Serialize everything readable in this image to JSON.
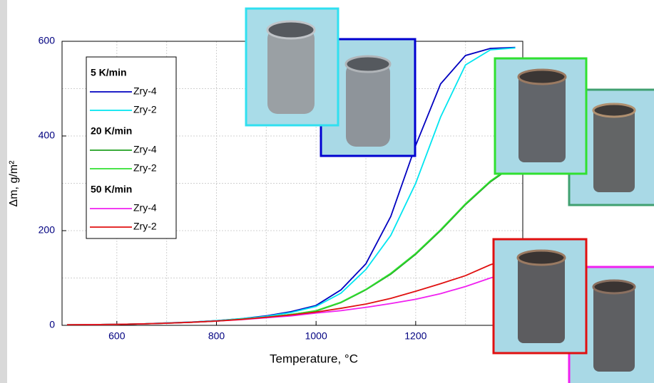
{
  "chart_data": {
    "type": "line",
    "x_label": "Temperature, °C",
    "y_label": "Δm, g/m²",
    "x": [
      500,
      550,
      600,
      650,
      700,
      750,
      800,
      850,
      900,
      950,
      1000,
      1050,
      1100,
      1150,
      1200,
      1250,
      1300,
      1350,
      1400
    ],
    "xlim": [
      490,
      1415
    ],
    "ylim": [
      0,
      600
    ],
    "xticks": [
      600,
      800,
      1000,
      1200
    ],
    "yticks": [
      0,
      200,
      400,
      600
    ],
    "xminorticks": [
      700,
      900,
      1100,
      1300
    ],
    "yminorticks": [
      100,
      300,
      500
    ],
    "grid": true,
    "groups": [
      {
        "title": "5 K/min",
        "series": [
          {
            "name": "Zry-4",
            "color": "#0000c0",
            "values": [
              1,
              1.5,
              2,
              3,
              5,
              7,
              10,
              14,
              20,
              29,
              42,
              75,
              130,
              230,
              380,
              510,
              570,
              585,
              587
            ]
          },
          {
            "name": "Zry-2",
            "color": "#00e5f0",
            "values": [
              1,
              1.5,
              2,
              3,
              5,
              7,
              10,
              14,
              19,
              27,
              40,
              68,
              118,
              190,
              300,
              440,
              550,
              582,
              586
            ]
          }
        ]
      },
      {
        "title": "20 K/min",
        "series": [
          {
            "name": "Zry-4",
            "color": "#20a020",
            "values": [
              1,
              1.5,
              2,
              3,
              4.5,
              6.5,
              9,
              13,
              17,
              23,
              30,
              48,
              75,
              108,
              150,
              200,
              255,
              303,
              340
            ]
          },
          {
            "name": "Zry-2",
            "color": "#30e030",
            "values": [
              1,
              1.5,
              2,
              3,
              4.5,
              6.5,
              9,
              13,
              17,
              23,
              31,
              49,
              76,
              110,
              152,
              202,
              257,
              305,
              342
            ]
          }
        ]
      },
      {
        "title": "50 K/min",
        "series": [
          {
            "name": "Zry-4",
            "color": "#f020f0",
            "values": [
              1,
              1.5,
              2,
              3,
              4.5,
              6.5,
              9,
              12,
              16,
              20,
              26,
              31,
              38,
              46,
              55,
              67,
              82,
              100,
              115
            ]
          },
          {
            "name": "Zry-2",
            "color": "#e01010",
            "values": [
              1,
              1.5,
              2,
              3,
              4.5,
              6.5,
              9,
              12.5,
              17,
              22,
              28,
              36,
              45,
              57,
              72,
              88,
              105,
              128,
              145
            ]
          }
        ]
      }
    ]
  }
}
